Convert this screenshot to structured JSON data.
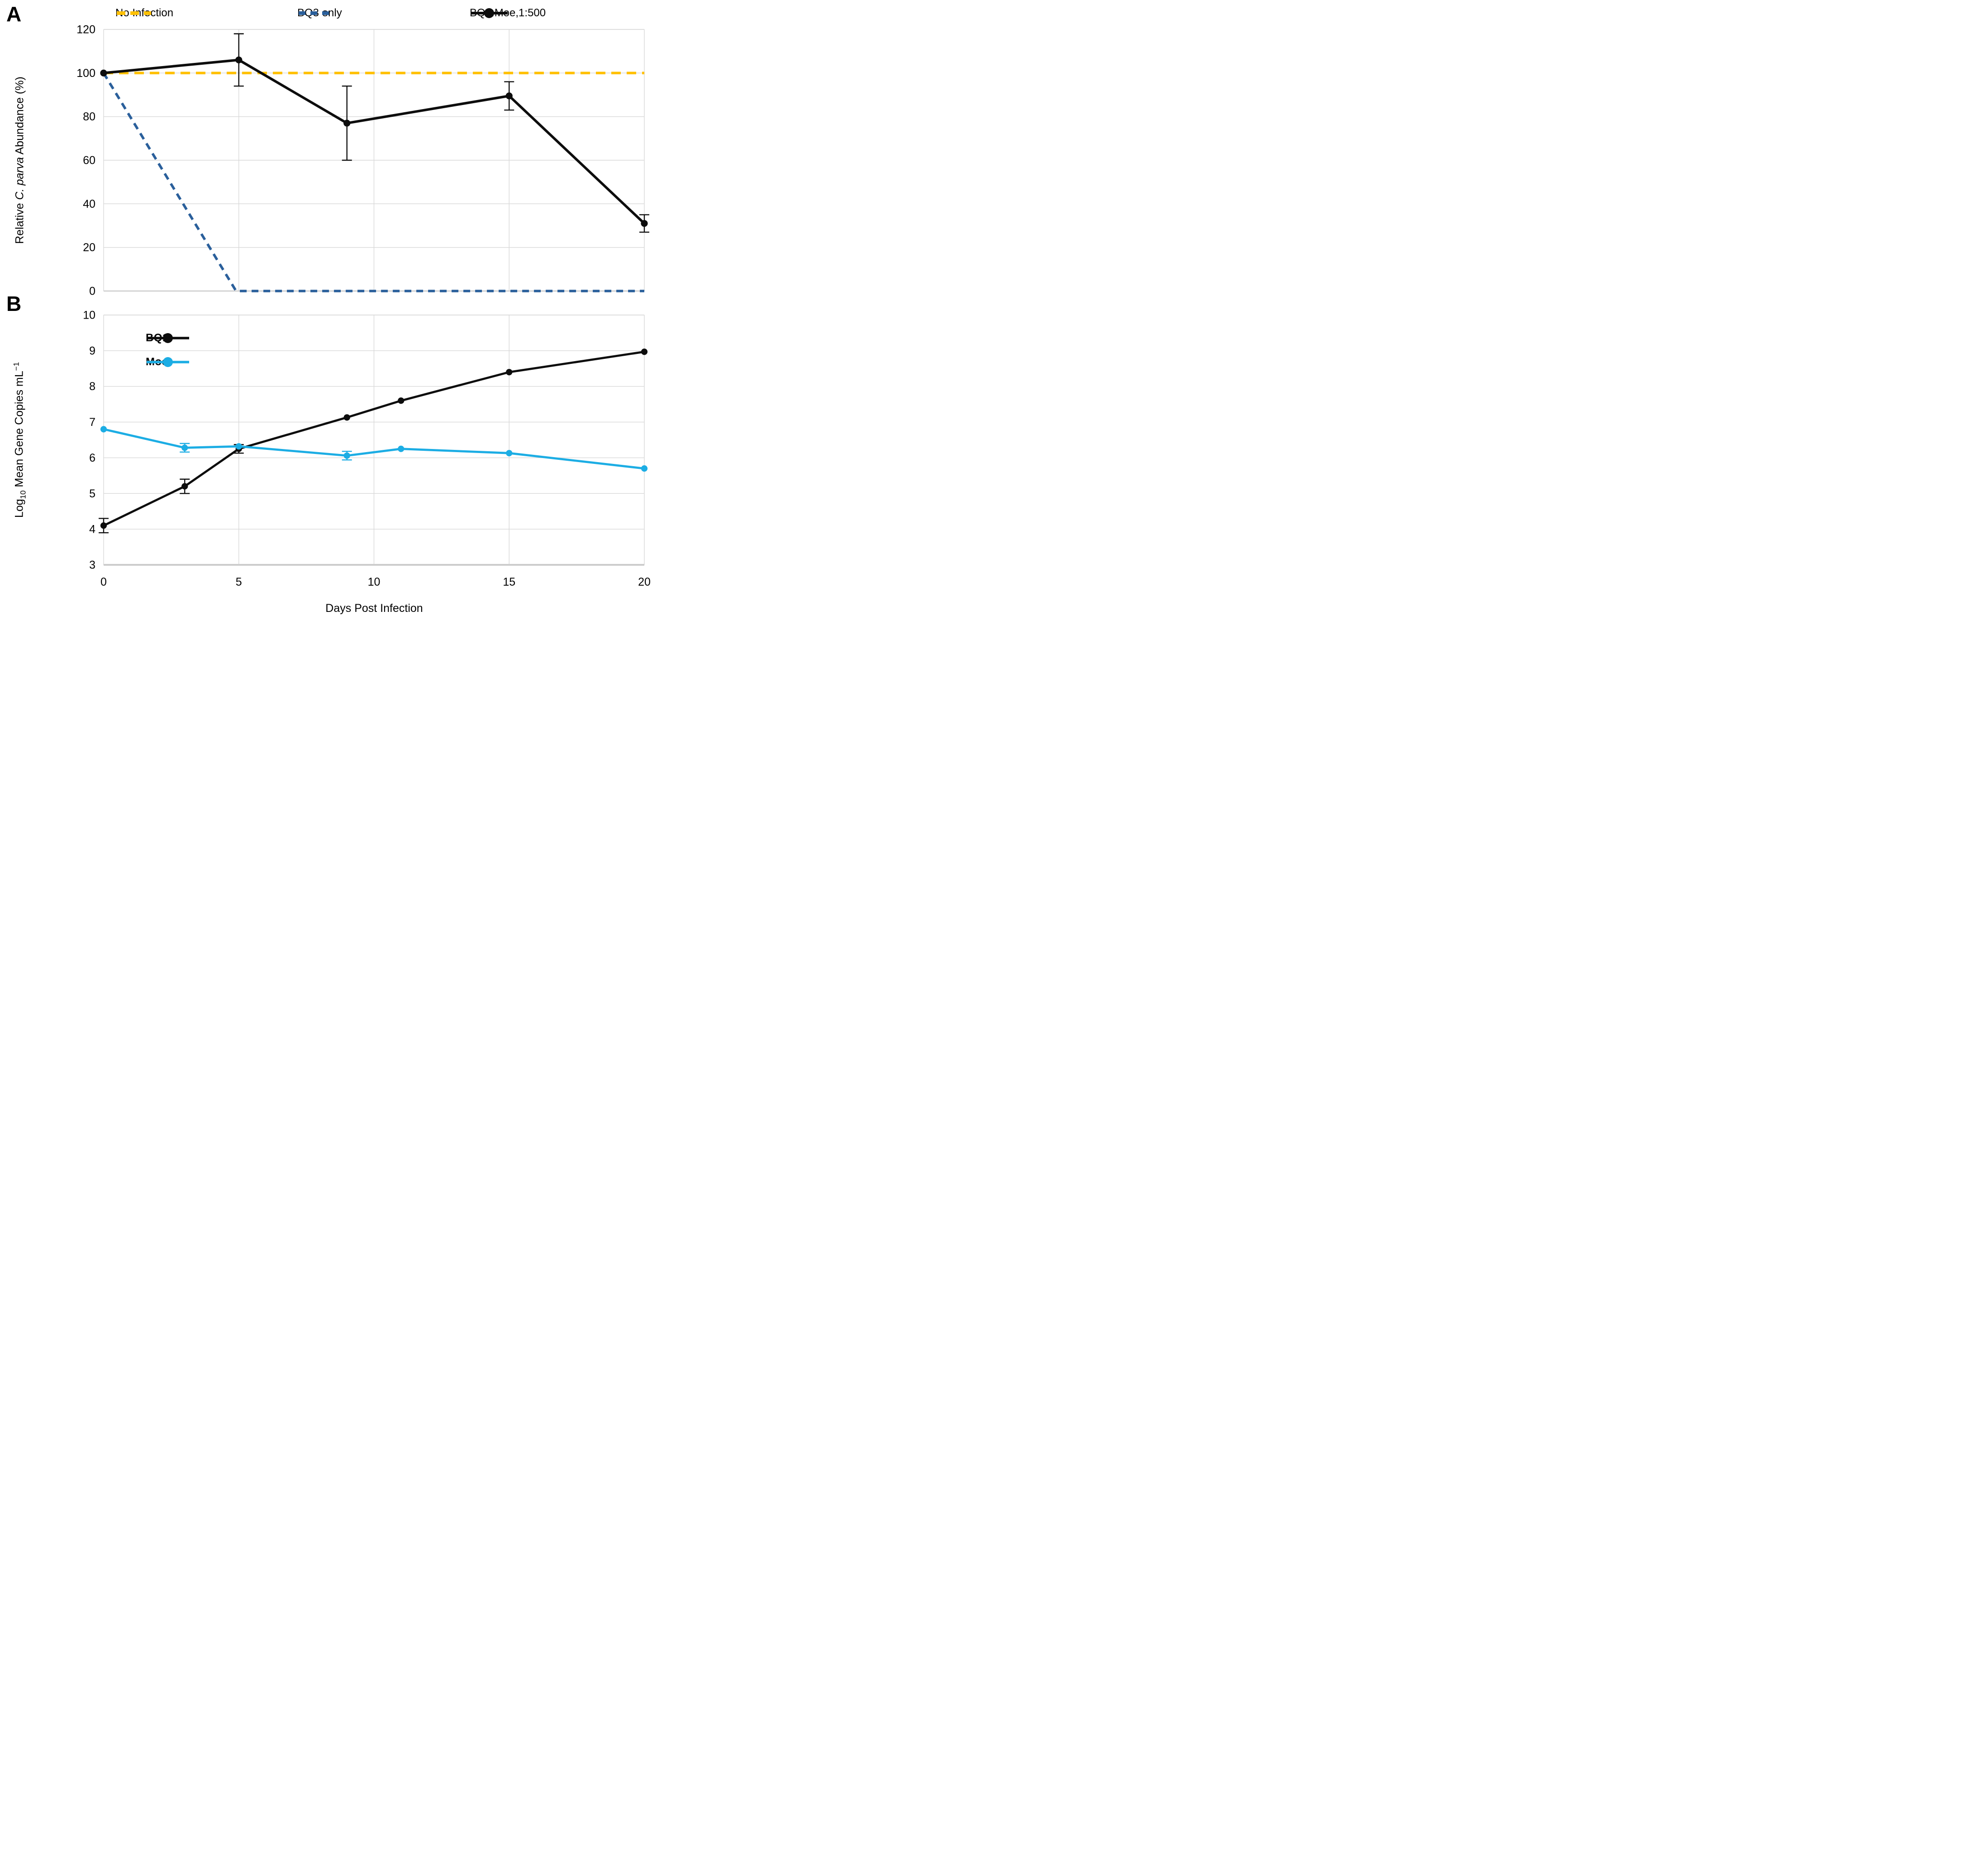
{
  "panels": {
    "a": {
      "label": "A",
      "ylabel_prefix": "Relative ",
      "ylabel_italic": "C. parva",
      "ylabel_suffix": " Abundance (%)"
    },
    "b": {
      "label": "B",
      "ylabel_base": "Log",
      "ylabel_sub": "10",
      "ylabel_mid": " Mean Gene Copies mL",
      "ylabel_sup": "−1",
      "xlabel": "Days Post Infection"
    }
  },
  "chart_data": [
    {
      "type": "line",
      "panel": "A",
      "title": "",
      "ylabel": "Relative C. parva Abundance (%)",
      "xlabel": "",
      "xlim": [
        0,
        20
      ],
      "ylim": [
        0,
        120
      ],
      "yticks": [
        0,
        20,
        40,
        60,
        80,
        100,
        120
      ],
      "xgrid": [
        0,
        5,
        10,
        15,
        20
      ],
      "grid": true,
      "legend_position": "top",
      "series": [
        {
          "name": "No Infection",
          "color": "#FFC000",
          "style": "long-dash",
          "x": [
            0,
            20
          ],
          "y": [
            100,
            100
          ]
        },
        {
          "name": "BQ3 only",
          "color": "#2A5F9B",
          "style": "dash",
          "x": [
            0,
            4.9,
            20
          ],
          "y": [
            100,
            0,
            0
          ]
        },
        {
          "name": "BQ1:Moe,1:500",
          "color": "#0D0D0D",
          "style": "solid-markers",
          "x": [
            0,
            5,
            9,
            15,
            20
          ],
          "y": [
            100,
            106,
            77,
            89.5,
            31
          ],
          "yerr": [
            0,
            12,
            17,
            6.5,
            4
          ]
        }
      ]
    },
    {
      "type": "line",
      "panel": "B",
      "title": "",
      "ylabel": "Log10 Mean Gene Copies mL-1",
      "xlabel": "Days Post Infection",
      "xlim": [
        0,
        20
      ],
      "ylim": [
        3,
        10
      ],
      "yticks": [
        3,
        4,
        5,
        6,
        7,
        8,
        9,
        10
      ],
      "xticks": [
        0,
        5,
        10,
        15,
        20
      ],
      "xgrid": [
        0,
        5,
        10,
        15,
        20
      ],
      "grid": true,
      "legend_position": "top-left-inside",
      "series": [
        {
          "name": "BQ1",
          "color": "#0D0D0D",
          "style": "solid-markers",
          "x": [
            0,
            3,
            5,
            9,
            11,
            15,
            20
          ],
          "y": [
            4.1,
            5.2,
            6.25,
            7.13,
            7.6,
            8.4,
            8.97
          ],
          "yerr": [
            0.2,
            0.2,
            0.12,
            0,
            0,
            0,
            0
          ]
        },
        {
          "name": "Moe",
          "color": "#1CADE4",
          "style": "solid-markers",
          "x": [
            0,
            3,
            5,
            9,
            11,
            15,
            20
          ],
          "y": [
            6.8,
            6.28,
            6.32,
            6.06,
            6.25,
            6.13,
            5.7
          ],
          "yerr": [
            0,
            0.12,
            0,
            0.12,
            0,
            0,
            0
          ]
        }
      ]
    }
  ]
}
